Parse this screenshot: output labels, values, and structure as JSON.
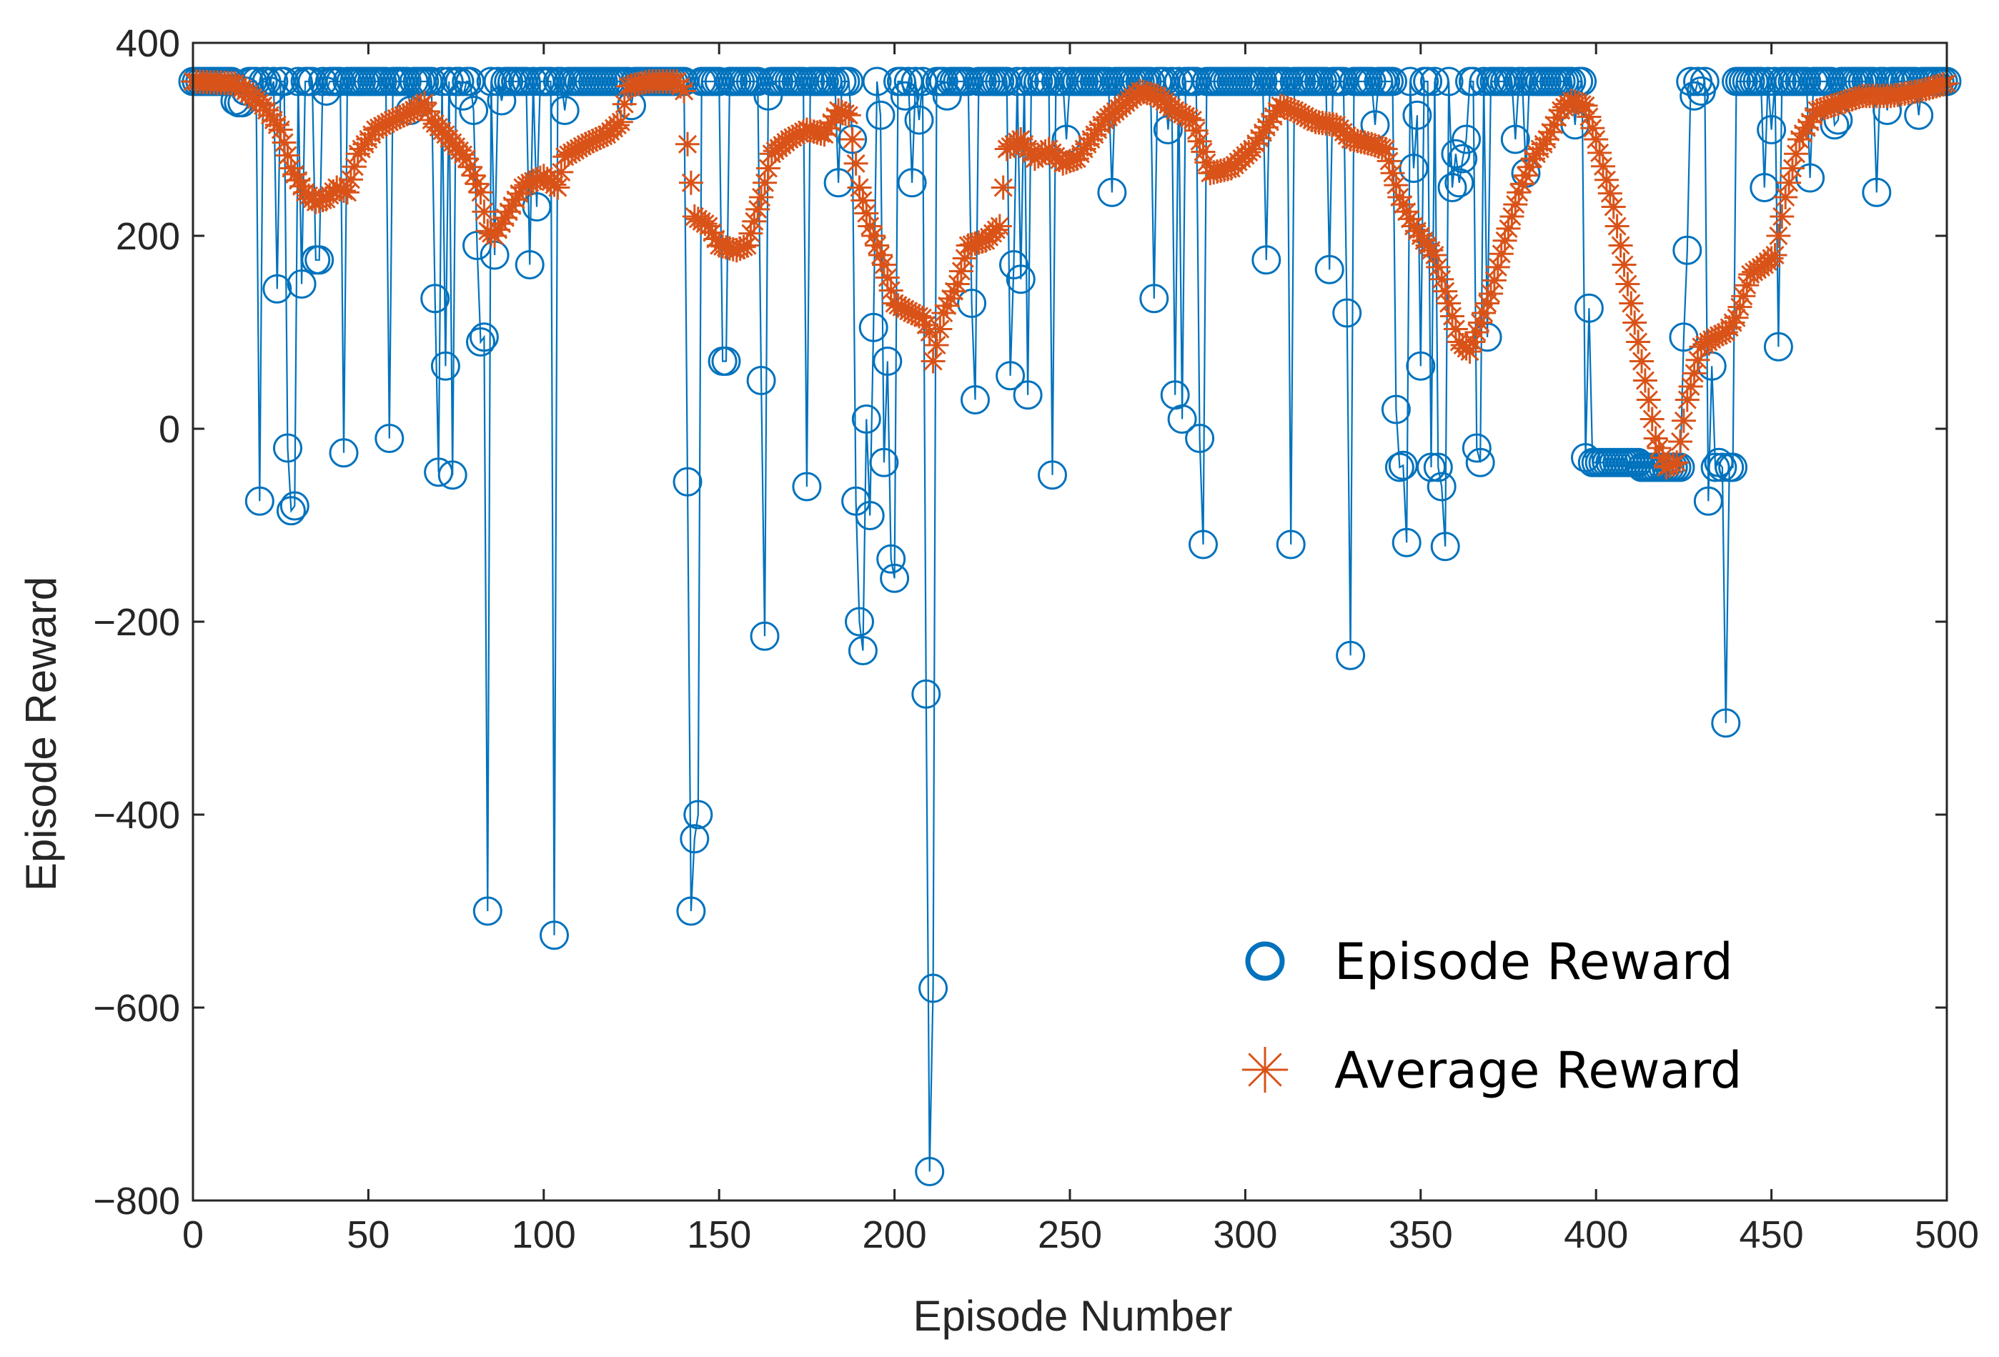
{
  "chart_data": {
    "type": "line",
    "title": "",
    "xlabel": "Episode Number",
    "ylabel": "Episode Reward",
    "xlim": [
      0,
      500
    ],
    "ylim": [
      -800,
      400
    ],
    "xticks": [
      0,
      50,
      100,
      150,
      200,
      250,
      300,
      350,
      400,
      450,
      500
    ],
    "yticks": [
      -800,
      -600,
      -400,
      -200,
      0,
      200,
      400
    ],
    "xtick_labels": [
      "0",
      "50",
      "100",
      "150",
      "200",
      "250",
      "300",
      "350",
      "400",
      "450",
      "500"
    ],
    "ytick_labels": [
      "−800",
      "−600",
      "−400",
      "−200",
      "0",
      "200",
      "400"
    ],
    "grid": false,
    "box": true,
    "legend_position": "bottom-right",
    "colors": {
      "episode": "#0072BD",
      "average": "#D95319",
      "axis": "#262626",
      "legend_text": "#000000"
    },
    "series": [
      {
        "name": "Episode Reward",
        "marker": "circle",
        "line": true,
        "base": 360,
        "deviations": [
          [
            12,
            340
          ],
          [
            13,
            338
          ],
          [
            14,
            338
          ],
          [
            15,
            350
          ],
          [
            19,
            -75
          ],
          [
            22,
            350
          ],
          [
            24,
            145
          ],
          [
            27,
            -20
          ],
          [
            28,
            -85
          ],
          [
            29,
            -80
          ],
          [
            31,
            150
          ],
          [
            35,
            175
          ],
          [
            36,
            175
          ],
          [
            38,
            350
          ],
          [
            43,
            -25
          ],
          [
            56,
            -10
          ],
          [
            62,
            330
          ],
          [
            69,
            135
          ],
          [
            70,
            -45
          ],
          [
            72,
            65
          ],
          [
            74,
            -48
          ],
          [
            77,
            345
          ],
          [
            80,
            330
          ],
          [
            81,
            190
          ],
          [
            82,
            90
          ],
          [
            83,
            95
          ],
          [
            84,
            -500
          ],
          [
            86,
            180
          ],
          [
            88,
            340
          ],
          [
            96,
            170
          ],
          [
            98,
            230
          ],
          [
            103,
            -525
          ],
          [
            106,
            330
          ],
          [
            125,
            335
          ],
          [
            141,
            -55
          ],
          [
            142,
            -500
          ],
          [
            143,
            -425
          ],
          [
            144,
            -400
          ],
          [
            151,
            70
          ],
          [
            152,
            70
          ],
          [
            162,
            50
          ],
          [
            163,
            -215
          ],
          [
            164,
            345
          ],
          [
            175,
            -60
          ],
          [
            184,
            255
          ],
          [
            188,
            300
          ],
          [
            189,
            -75
          ],
          [
            190,
            -200
          ],
          [
            191,
            -230
          ],
          [
            192,
            10
          ],
          [
            193,
            -90
          ],
          [
            194,
            105
          ],
          [
            196,
            325
          ],
          [
            197,
            -35
          ],
          [
            198,
            70
          ],
          [
            199,
            -135
          ],
          [
            200,
            -155
          ],
          [
            203,
            345
          ],
          [
            205,
            255
          ],
          [
            207,
            320
          ],
          [
            209,
            -275
          ],
          [
            210,
            -770
          ],
          [
            211,
            -580
          ],
          [
            215,
            345
          ],
          [
            222,
            130
          ],
          [
            223,
            30
          ],
          [
            233,
            55
          ],
          [
            234,
            170
          ],
          [
            236,
            155
          ],
          [
            238,
            35
          ],
          [
            245,
            -48
          ],
          [
            249,
            300
          ],
          [
            262,
            245
          ],
          [
            274,
            135
          ],
          [
            278,
            310
          ],
          [
            280,
            35
          ],
          [
            282,
            10
          ],
          [
            287,
            -10
          ],
          [
            288,
            -120
          ],
          [
            306,
            175
          ],
          [
            313,
            -120
          ],
          [
            324,
            165
          ],
          [
            329,
            120
          ],
          [
            330,
            -235
          ],
          [
            337,
            315
          ],
          [
            343,
            20
          ],
          [
            344,
            -40
          ],
          [
            345,
            -38
          ],
          [
            346,
            -118
          ],
          [
            348,
            270
          ],
          [
            349,
            325
          ],
          [
            350,
            65
          ],
          [
            353,
            -40
          ],
          [
            355,
            -40
          ],
          [
            356,
            -60
          ],
          [
            357,
            -122
          ],
          [
            359,
            250
          ],
          [
            360,
            285
          ],
          [
            361,
            255
          ],
          [
            362,
            280
          ],
          [
            363,
            300
          ],
          [
            366,
            -20
          ],
          [
            367,
            -35
          ],
          [
            369,
            95
          ],
          [
            377,
            300
          ],
          [
            380,
            265
          ],
          [
            394,
            315
          ],
          [
            397,
            -30
          ],
          [
            398,
            125
          ],
          [
            399,
            -35
          ],
          [
            400,
            -35
          ],
          [
            401,
            -35
          ],
          [
            402,
            -35
          ],
          [
            403,
            -35
          ],
          [
            404,
            -35
          ],
          [
            405,
            -35
          ],
          [
            406,
            -35
          ],
          [
            407,
            -35
          ],
          [
            408,
            -35
          ],
          [
            409,
            -35
          ],
          [
            410,
            -35
          ],
          [
            411,
            -35
          ],
          [
            412,
            -35
          ],
          [
            413,
            -40
          ],
          [
            414,
            -40
          ],
          [
            415,
            -40
          ],
          [
            416,
            -40
          ],
          [
            417,
            -40
          ],
          [
            418,
            -40
          ],
          [
            419,
            -40
          ],
          [
            420,
            -40
          ],
          [
            421,
            -40
          ],
          [
            422,
            -40
          ],
          [
            423,
            -40
          ],
          [
            424,
            -40
          ],
          [
            425,
            95
          ],
          [
            426,
            185
          ],
          [
            428,
            345
          ],
          [
            430,
            350
          ],
          [
            432,
            -75
          ],
          [
            433,
            65
          ],
          [
            434,
            -40
          ],
          [
            435,
            -35
          ],
          [
            436,
            -40
          ],
          [
            437,
            -305
          ],
          [
            438,
            -40
          ],
          [
            439,
            -40
          ],
          [
            448,
            250
          ],
          [
            450,
            310
          ],
          [
            452,
            85
          ],
          [
            461,
            260
          ],
          [
            468,
            315
          ],
          [
            469,
            320
          ],
          [
            480,
            245
          ],
          [
            483,
            330
          ],
          [
            492,
            325
          ]
        ]
      },
      {
        "name": "Average Reward",
        "marker": "asterisk",
        "line": false,
        "anchors": [
          [
            0,
            360
          ],
          [
            12,
            358
          ],
          [
            15,
            350
          ],
          [
            20,
            335
          ],
          [
            25,
            310
          ],
          [
            28,
            270
          ],
          [
            32,
            245
          ],
          [
            35,
            235
          ],
          [
            38,
            238
          ],
          [
            41,
            250
          ],
          [
            44,
            245
          ],
          [
            47,
            285
          ],
          [
            52,
            310
          ],
          [
            57,
            320
          ],
          [
            62,
            328
          ],
          [
            66,
            338
          ],
          [
            68,
            320
          ],
          [
            72,
            305
          ],
          [
            78,
            280
          ],
          [
            82,
            245
          ],
          [
            84,
            205
          ],
          [
            86,
            200
          ],
          [
            90,
            225
          ],
          [
            94,
            250
          ],
          [
            96,
            255
          ],
          [
            100,
            262
          ],
          [
            104,
            250
          ],
          [
            106,
            282
          ],
          [
            112,
            295
          ],
          [
            118,
            305
          ],
          [
            122,
            318
          ],
          [
            124,
            355
          ],
          [
            130,
            360
          ],
          [
            138,
            360
          ],
          [
            140,
            350
          ],
          [
            141,
            295
          ],
          [
            142,
            255
          ],
          [
            143,
            220
          ],
          [
            147,
            210
          ],
          [
            150,
            190
          ],
          [
            155,
            185
          ],
          [
            158,
            190
          ],
          [
            162,
            240
          ],
          [
            165,
            285
          ],
          [
            170,
            300
          ],
          [
            175,
            310
          ],
          [
            180,
            305
          ],
          [
            184,
            330
          ],
          [
            187,
            325
          ],
          [
            188,
            300
          ],
          [
            190,
            250
          ],
          [
            193,
            210
          ],
          [
            197,
            170
          ],
          [
            200,
            130
          ],
          [
            205,
            120
          ],
          [
            208,
            115
          ],
          [
            210,
            100
          ],
          [
            211,
            70
          ],
          [
            214,
            120
          ],
          [
            218,
            150
          ],
          [
            221,
            190
          ],
          [
            226,
            195
          ],
          [
            230,
            210
          ],
          [
            232,
            290
          ],
          [
            236,
            300
          ],
          [
            240,
            280
          ],
          [
            244,
            290
          ],
          [
            248,
            275
          ],
          [
            252,
            280
          ],
          [
            256,
            300
          ],
          [
            260,
            320
          ],
          [
            265,
            335
          ],
          [
            270,
            350
          ],
          [
            275,
            345
          ],
          [
            280,
            330
          ],
          [
            285,
            320
          ],
          [
            290,
            265
          ],
          [
            296,
            270
          ],
          [
            302,
            290
          ],
          [
            310,
            335
          ],
          [
            314,
            330
          ],
          [
            320,
            318
          ],
          [
            326,
            315
          ],
          [
            330,
            300
          ],
          [
            336,
            295
          ],
          [
            340,
            290
          ],
          [
            344,
            240
          ],
          [
            348,
            210
          ],
          [
            354,
            180
          ],
          [
            358,
            130
          ],
          [
            361,
            90
          ],
          [
            364,
            80
          ],
          [
            367,
            110
          ],
          [
            370,
            140
          ],
          [
            374,
            195
          ],
          [
            378,
            245
          ],
          [
            382,
            280
          ],
          [
            386,
            300
          ],
          [
            390,
            330
          ],
          [
            393,
            340
          ],
          [
            397,
            335
          ],
          [
            400,
            300
          ],
          [
            405,
            230
          ],
          [
            410,
            130
          ],
          [
            414,
            50
          ],
          [
            417,
            -10
          ],
          [
            420,
            -40
          ],
          [
            423,
            -35
          ],
          [
            426,
            30
          ],
          [
            430,
            85
          ],
          [
            434,
            95
          ],
          [
            437,
            100
          ],
          [
            440,
            115
          ],
          [
            444,
            160
          ],
          [
            448,
            170
          ],
          [
            451,
            180
          ],
          [
            454,
            240
          ],
          [
            458,
            300
          ],
          [
            463,
            330
          ],
          [
            470,
            338
          ],
          [
            476,
            345
          ],
          [
            484,
            345
          ],
          [
            492,
            350
          ],
          [
            500,
            358
          ]
        ]
      }
    ]
  }
}
